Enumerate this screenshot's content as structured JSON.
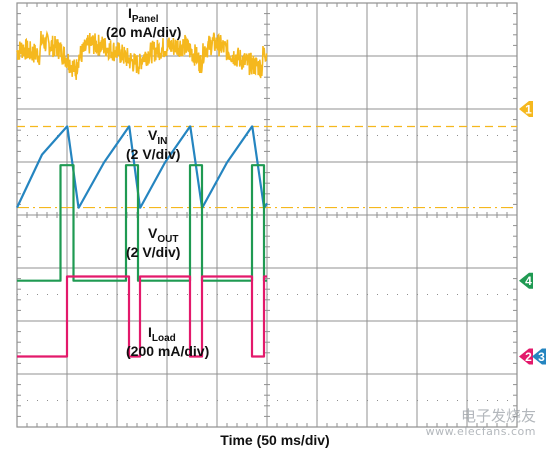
{
  "chart_data": {
    "type": "line",
    "xlabel": "Time (50 ms/div)",
    "divisions": {
      "x": 10,
      "y": 8
    },
    "colors": {
      "grid": "#909090",
      "ipanel": "#f5b81e",
      "vin": "#2585c0",
      "vout": "#1f9a52",
      "iload": "#e3196b"
    },
    "series": [
      {
        "name": "IPanel",
        "main": "I",
        "sub": "Panel",
        "scale": "(20 mA/div)",
        "color": "#f5b81e",
        "x": [
          0,
          12,
          24,
          46,
          48,
          84,
          108,
          118,
          122,
          146,
          172,
          204,
          236,
          246,
          250,
          276,
          302,
          336,
          358,
          368,
          374,
          392,
          410,
          432,
          464,
          480,
          490,
          492,
          500
        ],
        "y": [
          7.08,
          7.15,
          7.08,
          7.02,
          7.28,
          7.14,
          6.85,
          6.7,
          6.96,
          7.24,
          7.19,
          7.06,
          6.86,
          6.84,
          6.98,
          7.1,
          7.18,
          7.2,
          7.0,
          6.85,
          7.12,
          7.25,
          7.18,
          7.02,
          6.85,
          6.82,
          6.78,
          7.02,
          7.1
        ]
      },
      {
        "name": "VIN",
        "main": "V",
        "sub": "IN",
        "scale": "(2 V/div)",
        "color": "#2585c0",
        "x": [
          0,
          50,
          100,
          100.5,
          123,
          123.5,
          174,
          224,
          224.5,
          246,
          246.5,
          296,
          346,
          346.5,
          370,
          370.5,
          420,
          470,
          470.5,
          494,
          494.5,
          500
        ],
        "y": [
          4.14,
          5.14,
          5.67,
          5.67,
          4.14,
          4.14,
          4.99,
          5.67,
          5.67,
          4.14,
          4.14,
          4.99,
          5.67,
          5.67,
          4.14,
          4.14,
          4.99,
          5.67,
          5.67,
          4.14,
          4.14,
          4.22
        ]
      },
      {
        "name": "VOUT",
        "main": "V",
        "sub": "OUT",
        "scale": "(2 V/div)",
        "color": "#1f9a52",
        "x": [
          0,
          87,
          87,
          113,
          113,
          218,
          218,
          242,
          242,
          346,
          346,
          370,
          370,
          470,
          470,
          494,
          494,
          500
        ],
        "y": [
          2.76,
          2.76,
          4.94,
          4.94,
          2.76,
          2.76,
          4.94,
          4.94,
          2.76,
          2.76,
          4.94,
          4.94,
          2.76,
          2.76,
          4.94,
          4.94,
          2.76,
          2.76
        ]
      },
      {
        "name": "ILoad",
        "main": "I",
        "sub": "Load",
        "scale": "(200 mA/div)",
        "color": "#e3196b",
        "x": [
          0,
          100,
          100,
          224,
          224,
          246,
          246,
          346,
          346,
          370,
          370,
          470,
          470,
          494,
          494,
          500
        ],
        "y": [
          1.33,
          1.33,
          2.84,
          2.84,
          1.33,
          1.33,
          2.84,
          2.84,
          1.33,
          1.33,
          2.84,
          2.84,
          1.33,
          1.33,
          2.84,
          2.84
        ]
      }
    ],
    "reference_levels": [
      5.67,
      4.14
    ],
    "channel_markers": [
      {
        "label": "1",
        "color": "#f5b81e",
        "y": 6.0
      },
      {
        "label": "4",
        "color": "#1f9a52",
        "y": 2.76
      },
      {
        "label": "2",
        "color": "#e3196b",
        "y": 1.33
      },
      {
        "label": "3",
        "color": "#2585c0",
        "y": 1.33
      }
    ]
  },
  "watermark": {
    "name": "电子发烧友",
    "url": "www.elecfans.com"
  }
}
